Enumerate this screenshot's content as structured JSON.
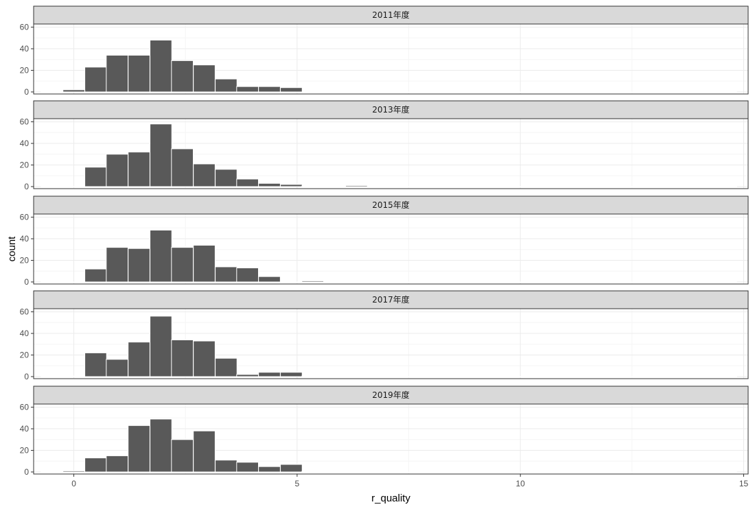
{
  "chart_data": {
    "type": "bar",
    "chart_kind": "faceted-histogram",
    "xlabel": "r_quality",
    "ylabel": "count",
    "xlim": [
      -0.9,
      15.1
    ],
    "ylim": [
      0,
      61
    ],
    "x_ticks": [
      0,
      5,
      10,
      15
    ],
    "y_ticks": [
      0,
      20,
      40,
      60
    ],
    "bin_width": 0.487,
    "grid": true,
    "colors": {
      "bar_fill": "#595959",
      "bar_outline": "#ffffff",
      "strip_fill": "#d9d9d9",
      "panel_border": "#333333",
      "grid_major": "#ebebeb",
      "grid_minor": "#f5f5f5"
    },
    "bin_centers": [
      -0.49,
      0.0,
      0.49,
      0.97,
      1.46,
      1.95,
      2.43,
      2.92,
      3.41,
      3.89,
      4.38,
      4.87,
      5.35,
      5.84,
      6.33,
      6.81,
      7.3,
      7.79,
      8.27,
      8.76,
      9.25,
      9.73,
      10.22,
      10.71,
      11.19,
      11.68,
      12.17,
      12.65,
      13.14,
      13.63,
      14.11,
      14.6
    ],
    "facets": [
      {
        "label": "2011年度",
        "counts": [
          0,
          2,
          23,
          34,
          34,
          48,
          29,
          25,
          12,
          5,
          5,
          4,
          0,
          0,
          0,
          0,
          0,
          0,
          0,
          0,
          0,
          0,
          0,
          0,
          0,
          0,
          0,
          0,
          0,
          0,
          0,
          0
        ]
      },
      {
        "label": "2013年度",
        "counts": [
          0,
          0,
          18,
          30,
          32,
          58,
          35,
          21,
          16,
          7,
          3,
          2,
          0.5,
          0,
          1,
          0,
          0,
          0,
          0,
          0,
          0,
          0,
          0,
          0,
          0,
          0,
          0,
          0,
          0,
          0,
          0,
          0
        ]
      },
      {
        "label": "2015年度",
        "counts": [
          0,
          0,
          12,
          32,
          31,
          48,
          32,
          34,
          14,
          13,
          5,
          0,
          1,
          0,
          0,
          0,
          0,
          0,
          0,
          0,
          0,
          0,
          0,
          0,
          0,
          0,
          0,
          0,
          0,
          0,
          0,
          0
        ]
      },
      {
        "label": "2017年度",
        "counts": [
          0,
          0.5,
          22,
          16,
          32,
          56,
          34,
          33,
          17,
          2,
          4,
          4,
          0.5,
          0,
          0.5,
          0,
          0,
          0,
          0.5,
          0,
          0,
          0,
          0,
          0,
          0,
          0,
          0,
          0,
          0,
          0,
          0.5,
          0
        ]
      },
      {
        "label": "2019年度",
        "counts": [
          0,
          1,
          13,
          15,
          43,
          49,
          30,
          38,
          11,
          9,
          5,
          7,
          0.5,
          0.5,
          0.5,
          0,
          0,
          0,
          0,
          0,
          0,
          0,
          0,
          0,
          0,
          0,
          0,
          0,
          0,
          0,
          0,
          0
        ]
      }
    ]
  }
}
